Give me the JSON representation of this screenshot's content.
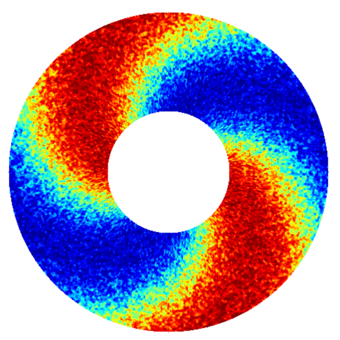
{
  "chart_data": {
    "type": "heatmap",
    "shape": "annulus",
    "title": "",
    "colormap": "jet",
    "colormap_stops": [
      "#00008f",
      "#0000ff",
      "#00ffff",
      "#ffff00",
      "#ff0000",
      "#800000"
    ],
    "background": "#ffffff",
    "grid": false,
    "legend": "none",
    "value_range": [
      0,
      1
    ],
    "pattern": {
      "description_terms": [
        "azimuthal-mode",
        "radial-phase-shift"
      ],
      "azimuthal_mode": 2,
      "phase_offset_deg": 25,
      "radial_twist_deg": 115,
      "texture_fine_mode": 60,
      "texture_amplitude": 0.22
    }
  }
}
